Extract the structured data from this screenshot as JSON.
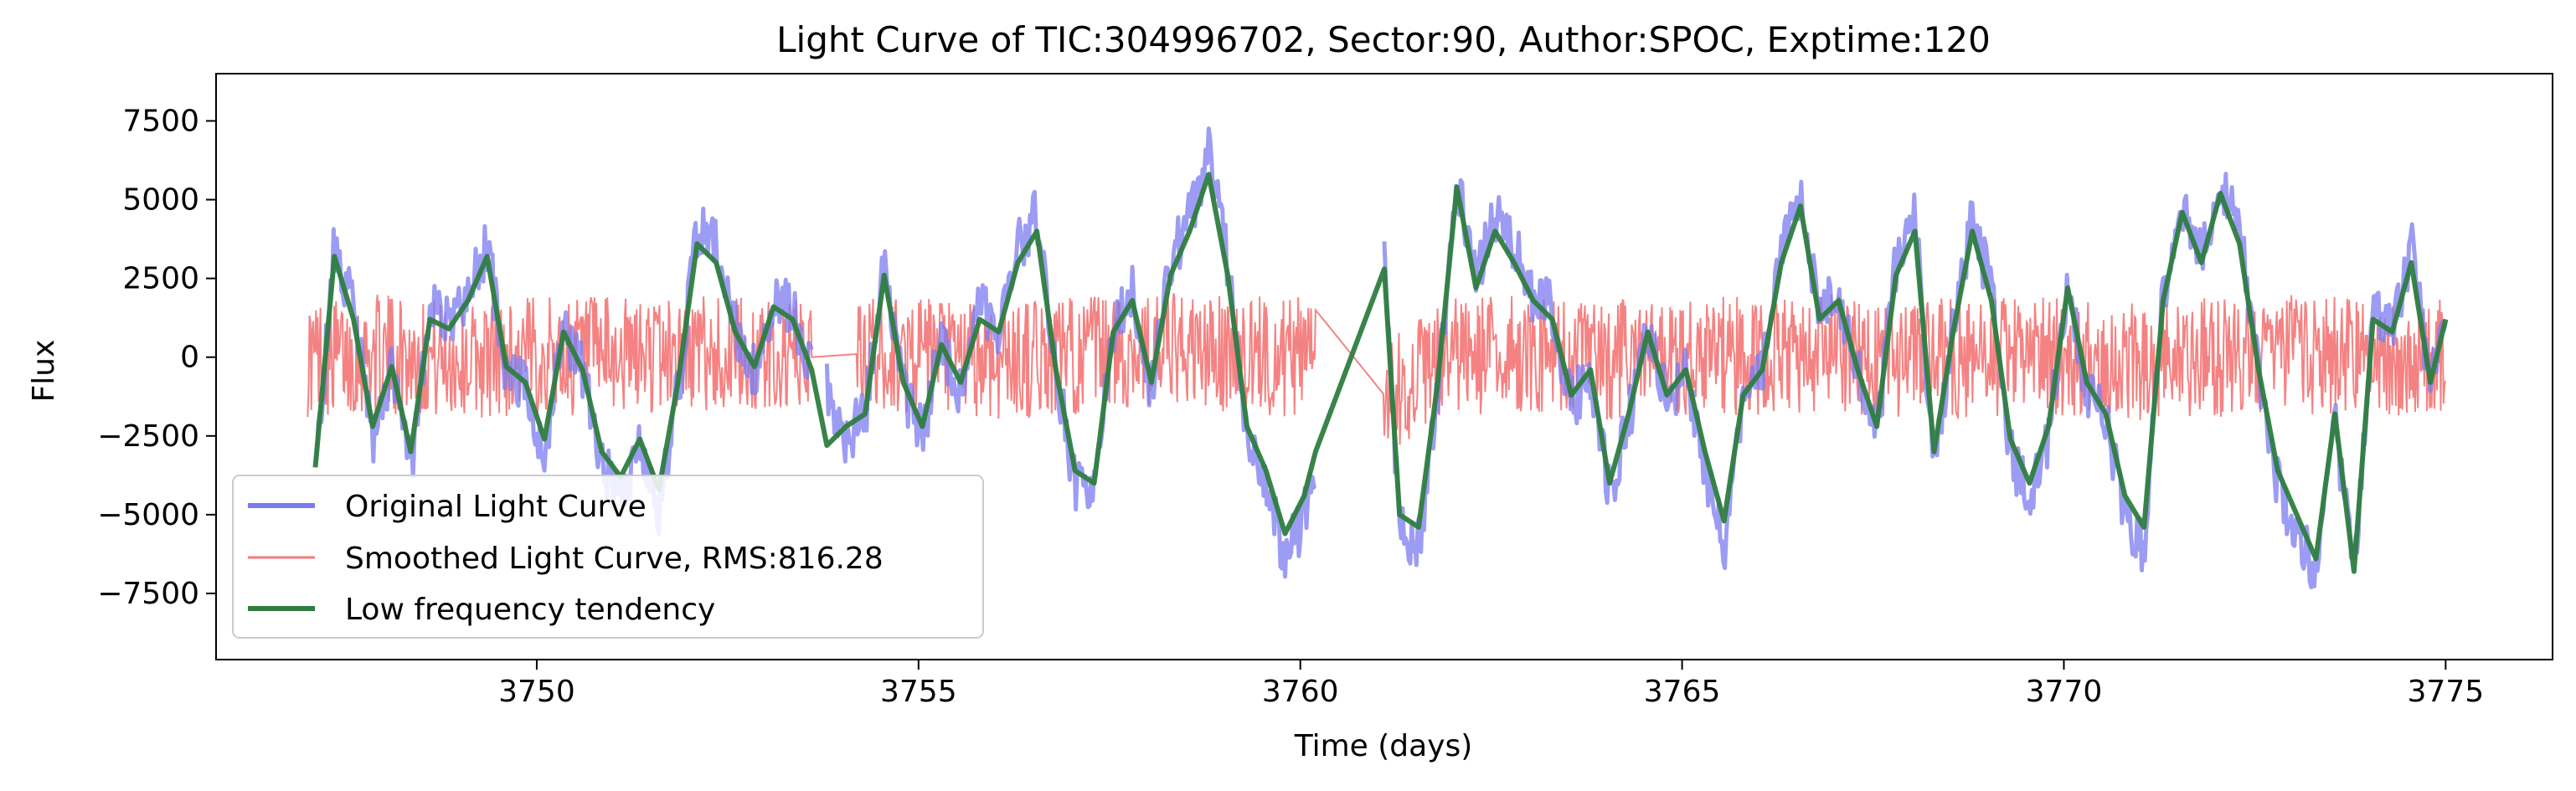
{
  "chart_data": {
    "type": "line",
    "title": "Light Curve of TIC:304996702, Sector:90, Author:SPOC, Exptime:120",
    "xlabel": "Time (days)",
    "ylabel": "Flux",
    "xlim": [
      3745.8,
      3776.4
    ],
    "ylim": [
      -9600,
      9000
    ],
    "xticks": [
      3750,
      3755,
      3760,
      3765,
      3770,
      3775
    ],
    "yticks": [
      -7500,
      -5000,
      -2500,
      0,
      2500,
      5000,
      7500
    ],
    "xtick_labels": [
      "3750",
      "3755",
      "3760",
      "3765",
      "3770",
      "3775"
    ],
    "ytick_labels": [
      "−7500",
      "−5000",
      "−2500",
      "0",
      "2500",
      "5000",
      "7500"
    ],
    "grid": false,
    "legend_position": "lower-left",
    "series": [
      {
        "name": "Original Light Curve",
        "color": "#7b7bf0",
        "style": "thick-noisy",
        "x": [
          3747.1,
          3747.35,
          3747.6,
          3747.85,
          3748.1,
          3748.35,
          3748.6,
          3748.85,
          3749.1,
          3749.35,
          3749.6,
          3749.85,
          3750.1,
          3750.35,
          3750.6,
          3750.85,
          3751.1,
          3751.35,
          3751.6,
          3751.85,
          3752.1,
          3752.35,
          3752.6,
          3752.85,
          3753.1,
          3753.35,
          3753.6,
          3753.8,
          3754.05,
          3754.3,
          3754.55,
          3754.8,
          3755.05,
          3755.3,
          3755.55,
          3755.8,
          3756.05,
          3756.3,
          3756.55,
          3756.8,
          3757.05,
          3757.3,
          3757.55,
          3757.8,
          3758.05,
          3758.3,
          3758.55,
          3758.8,
          3759.05,
          3759.3,
          3759.55,
          3759.8,
          3760.05,
          3760.2,
          3761.1,
          3761.3,
          3761.55,
          3761.8,
          3762.05,
          3762.3,
          3762.55,
          3762.8,
          3763.05,
          3763.3,
          3763.55,
          3763.8,
          3764.05,
          3764.3,
          3764.55,
          3764.8,
          3765.05,
          3765.3,
          3765.55,
          3765.8,
          3766.05,
          3766.3,
          3766.55,
          3766.8,
          3767.05,
          3767.3,
          3767.55,
          3767.8,
          3768.05,
          3768.3,
          3768.55,
          3768.8,
          3769.05,
          3769.3,
          3769.55,
          3769.8,
          3770.05,
          3770.3,
          3770.55,
          3770.8,
          3771.05,
          3771.3,
          3771.55,
          3771.8,
          3772.05,
          3772.3,
          3772.55,
          3772.8,
          3773.05,
          3773.3,
          3773.55,
          3773.8,
          3774.05,
          3774.3,
          3774.55,
          3774.8,
          3775.0
        ],
        "y": [
          -4000,
          3500,
          1500,
          -2500,
          -500,
          -3500,
          1500,
          1000,
          2000,
          3500,
          -500,
          -1000,
          -3000,
          1000,
          -500,
          -3500,
          -4500,
          -3000,
          -5000,
          -1000,
          4000,
          3500,
          1000,
          -500,
          2000,
          1500,
          -500,
          -1000,
          -2500,
          -2000,
          3000,
          -1000,
          -2500,
          500,
          -1000,
          1500,
          1000,
          3500,
          4500,
          -500,
          -4000,
          -4500,
          1000,
          2000,
          -1000,
          3000,
          4500,
          6500,
          3000,
          -2500,
          -4000,
          -6500,
          -5000,
          -3500,
          3000,
          -5500,
          -6000,
          -1000,
          5500,
          2500,
          4500,
          3500,
          2000,
          1500,
          -1500,
          -500,
          -4500,
          -2000,
          1000,
          -1500,
          -500,
          -3500,
          -6000,
          -1500,
          -500,
          3500,
          5000,
          1500,
          2000,
          -500,
          -2500,
          3000,
          4500,
          -3500,
          1000,
          4500,
          2000,
          -3000,
          -4500,
          -2500,
          2500,
          -1000,
          -2000,
          -5000,
          -6000,
          2000,
          5000,
          3500,
          5500,
          4000,
          -500,
          -4000,
          -5500,
          -7000,
          -2000,
          -7000,
          1500,
          1000,
          3500,
          -1000,
          1500
        ]
      },
      {
        "name": "Smoothed Light Curve, RMS:816.28",
        "color": "#f47b7b",
        "style": "thin-noisy",
        "x": [
          3747.0,
          3748.0,
          3749.0,
          3750.0,
          3751.0,
          3752.0,
          3753.0,
          3753.6,
          3754.2,
          3755.0,
          3756.0,
          3757.0,
          3758.0,
          3759.0,
          3760.0,
          3760.2,
          3761.1,
          3762.0,
          3763.0,
          3764.0,
          3765.0,
          3766.0,
          3767.0,
          3768.0,
          3769.0,
          3770.0,
          3771.0,
          3772.0,
          3773.0,
          3774.0,
          3775.0
        ],
        "y": [
          0,
          100,
          -100,
          50,
          0,
          150,
          -50,
          0,
          100,
          0,
          -100,
          50,
          200,
          100,
          0,
          1500,
          -1200,
          0,
          100,
          -100,
          50,
          0,
          100,
          -50,
          0,
          50,
          -100,
          0,
          100,
          0,
          0
        ],
        "band": 1900
      },
      {
        "name": "Low frequency tendency",
        "color": "#2e7d3f",
        "style": "thick",
        "x": [
          3747.1,
          3747.35,
          3747.6,
          3747.85,
          3748.1,
          3748.35,
          3748.6,
          3748.85,
          3749.1,
          3749.35,
          3749.6,
          3749.85,
          3750.1,
          3750.35,
          3750.6,
          3750.85,
          3751.1,
          3751.35,
          3751.6,
          3751.85,
          3752.1,
          3752.35,
          3752.6,
          3752.85,
          3753.1,
          3753.35,
          3753.6,
          3753.8,
          3754.05,
          3754.3,
          3754.55,
          3754.8,
          3755.05,
          3755.3,
          3755.55,
          3755.8,
          3756.05,
          3756.3,
          3756.55,
          3756.8,
          3757.05,
          3757.3,
          3757.55,
          3757.8,
          3758.05,
          3758.3,
          3758.55,
          3758.8,
          3759.05,
          3759.3,
          3759.55,
          3759.8,
          3760.05,
          3760.2,
          3761.1,
          3761.3,
          3761.55,
          3761.8,
          3762.05,
          3762.3,
          3762.55,
          3762.8,
          3763.05,
          3763.3,
          3763.55,
          3763.8,
          3764.05,
          3764.3,
          3764.55,
          3764.8,
          3765.05,
          3765.3,
          3765.55,
          3765.8,
          3766.05,
          3766.3,
          3766.55,
          3766.8,
          3767.05,
          3767.3,
          3767.55,
          3767.8,
          3768.05,
          3768.3,
          3768.55,
          3768.8,
          3769.05,
          3769.3,
          3769.55,
          3769.8,
          3770.05,
          3770.3,
          3770.55,
          3770.8,
          3771.05,
          3771.3,
          3771.55,
          3771.8,
          3772.05,
          3772.3,
          3772.55,
          3772.8,
          3773.05,
          3773.3,
          3773.55,
          3773.8,
          3774.05,
          3774.3,
          3774.55,
          3774.8,
          3775.0
        ],
        "y": [
          -3500,
          3200,
          1200,
          -2200,
          -300,
          -3000,
          1200,
          900,
          1800,
          3200,
          -300,
          -800,
          -2600,
          800,
          -400,
          -3000,
          -3800,
          -2600,
          -4200,
          -800,
          3600,
          3000,
          800,
          -300,
          1600,
          1200,
          -400,
          -2800,
          -2200,
          -1800,
          2600,
          -800,
          -2200,
          400,
          -800,
          1200,
          800,
          3000,
          4000,
          -400,
          -3600,
          -4000,
          800,
          1800,
          -800,
          2600,
          4000,
          5800,
          2600,
          -2200,
          -3600,
          -5600,
          -4400,
          -3000,
          2800,
          -5000,
          -5400,
          -800,
          5400,
          2200,
          4000,
          3000,
          1800,
          1200,
          -1200,
          -400,
          -4000,
          -1800,
          800,
          -1200,
          -400,
          -3000,
          -5200,
          -1200,
          -400,
          3000,
          4800,
          1200,
          1800,
          -400,
          -2200,
          2600,
          4000,
          -3000,
          800,
          4000,
          1800,
          -2600,
          -4000,
          -2200,
          2200,
          -800,
          -1800,
          -4400,
          -5400,
          1800,
          4600,
          3000,
          5200,
          3600,
          -400,
          -3600,
          -5000,
          -6400,
          -1800,
          -6800,
          1200,
          800,
          3000,
          -800,
          1200
        ]
      }
    ]
  }
}
